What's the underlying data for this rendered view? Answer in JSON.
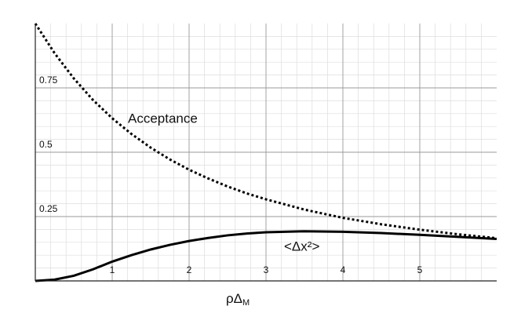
{
  "chart_data": {
    "type": "line",
    "xlabel": "ρΔ",
    "xlabel_sub": "M",
    "xlim": [
      0,
      6
    ],
    "ylim": [
      0,
      1
    ],
    "xticks": [
      1,
      2,
      3,
      4,
      5
    ],
    "yticks": [
      0.25,
      0.5,
      0.75
    ],
    "grid": true,
    "minor_grid": true,
    "x": [
      0,
      0.25,
      0.5,
      0.75,
      1,
      1.25,
      1.5,
      1.75,
      2,
      2.25,
      2.5,
      2.75,
      3,
      3.5,
      4,
      4.5,
      5,
      5.5,
      6
    ],
    "series": [
      {
        "name": "Acceptance",
        "color": "#000000",
        "dash": "dotted",
        "values": [
          1,
          0.885,
          0.787,
          0.703,
          0.632,
          0.571,
          0.518,
          0.472,
          0.432,
          0.398,
          0.367,
          0.34,
          0.317,
          0.277,
          0.245,
          0.22,
          0.199,
          0.181,
          0.166
        ]
      },
      {
        "name": "<Δx²>",
        "color": "#000000",
        "dash": "solid",
        "values": [
          0,
          0.005,
          0.02,
          0.045,
          0.075,
          0.1,
          0.122,
          0.14,
          0.155,
          0.167,
          0.177,
          0.184,
          0.189,
          0.193,
          0.191,
          0.186,
          0.179,
          0.171,
          0.163
        ]
      }
    ]
  }
}
